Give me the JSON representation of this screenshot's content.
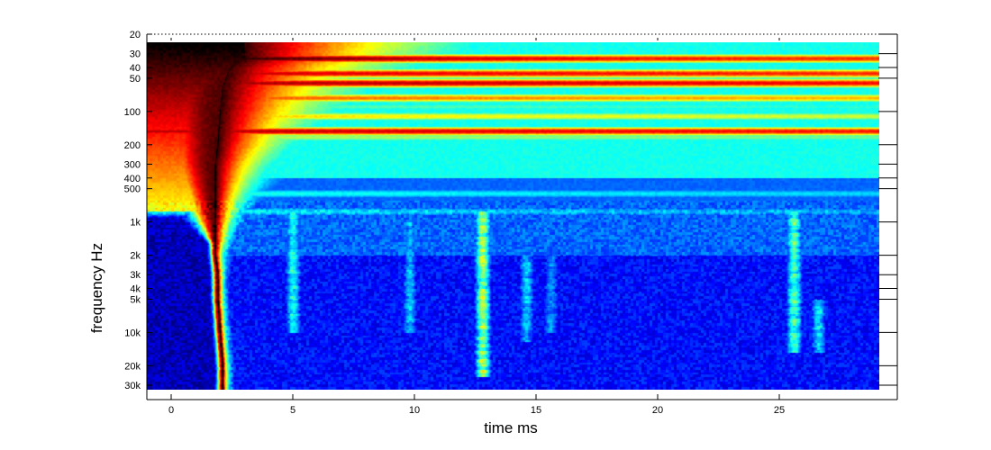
{
  "chart_data": {
    "type": "heatmap",
    "title": "",
    "xlabel": "time   ms",
    "ylabel": "frequency   Hz",
    "x_scale": "linear",
    "y_scale": "log",
    "y_reversed": true,
    "xlim": [
      -1,
      29
    ],
    "ylim": [
      20,
      35000
    ],
    "x_ticks": [
      0,
      5,
      10,
      15,
      20,
      25
    ],
    "x_tick_labels": [
      "0",
      "5",
      "10",
      "15",
      "20",
      "25"
    ],
    "y_ticks": [
      20,
      30,
      40,
      50,
      100,
      200,
      300,
      400,
      500,
      1000,
      2000,
      3000,
      4000,
      5000,
      10000,
      20000,
      30000
    ],
    "y_tick_labels": [
      "20",
      "30",
      "40",
      "50",
      "100",
      "200",
      "300",
      "400",
      "500",
      "1k",
      "2k",
      "3k",
      "4k",
      "5k",
      "10k",
      "20k",
      "30k"
    ],
    "data_extent": {
      "x": [
        -1,
        29
      ],
      "y_hz": [
        27,
        32000
      ]
    },
    "colormap": "jet",
    "colormap_stops": [
      "#00007f",
      "#0000ff",
      "#007fff",
      "#00ffff",
      "#7fff7f",
      "#ffff00",
      "#ff7f00",
      "#ff0000",
      "#7f0000",
      "#000000"
    ],
    "impulse_ridge": {
      "description_level": "black onset ridge of maximum level",
      "points": [
        [
          2.1,
          32000
        ],
        [
          2.1,
          20000
        ],
        [
          2.0,
          10000
        ],
        [
          1.9,
          5000
        ],
        [
          1.9,
          3000
        ],
        [
          1.8,
          2000
        ],
        [
          1.8,
          1000
        ],
        [
          1.8,
          500
        ],
        [
          1.8,
          300
        ],
        [
          1.9,
          200
        ],
        [
          2.0,
          100
        ],
        [
          2.1,
          60
        ],
        [
          2.4,
          40
        ],
        [
          3.0,
          33
        ]
      ]
    },
    "resonance_bands": [
      {
        "freq_hz": 33,
        "level": 0.97,
        "decay_ms": 9
      },
      {
        "freq_hz": 45,
        "level": 0.82,
        "decay_ms": 60
      },
      {
        "freq_hz": 55,
        "level": 0.86,
        "decay_ms": 60
      },
      {
        "freq_hz": 75,
        "level": 0.7,
        "decay_ms": 40
      },
      {
        "freq_hz": 90,
        "level": 0.42,
        "decay_ms": 40
      },
      {
        "freq_hz": 110,
        "level": 0.6,
        "decay_ms": 30
      },
      {
        "freq_hz": 150,
        "level": 0.84,
        "decay_ms": 60
      },
      {
        "freq_hz": 170,
        "level": 0.5,
        "decay_ms": 30
      },
      {
        "freq_hz": 230,
        "level": 0.3,
        "decay_ms": 30
      },
      {
        "freq_hz": 280,
        "level": 0.32,
        "decay_ms": 30
      },
      {
        "freq_hz": 550,
        "level": 0.36,
        "decay_ms": 25
      },
      {
        "freq_hz": 800,
        "level": 0.33,
        "decay_ms": 20
      }
    ],
    "secondary_bursts": [
      {
        "time_ms": 12.8,
        "freq_range_hz": [
          800,
          25000
        ],
        "level": 0.55
      },
      {
        "time_ms": 25.6,
        "freq_range_hz": [
          800,
          15000
        ],
        "level": 0.45
      },
      {
        "time_ms": 26.6,
        "freq_range_hz": [
          5000,
          15000
        ],
        "level": 0.35
      },
      {
        "time_ms": 5.0,
        "freq_range_hz": [
          800,
          10000
        ],
        "level": 0.4
      },
      {
        "time_ms": 9.8,
        "freq_range_hz": [
          1000,
          10000
        ],
        "level": 0.3
      },
      {
        "time_ms": 14.6,
        "freq_range_hz": [
          2000,
          12000
        ],
        "level": 0.32
      },
      {
        "time_ms": 15.6,
        "freq_range_hz": [
          2000,
          10000
        ],
        "level": 0.28
      }
    ]
  }
}
